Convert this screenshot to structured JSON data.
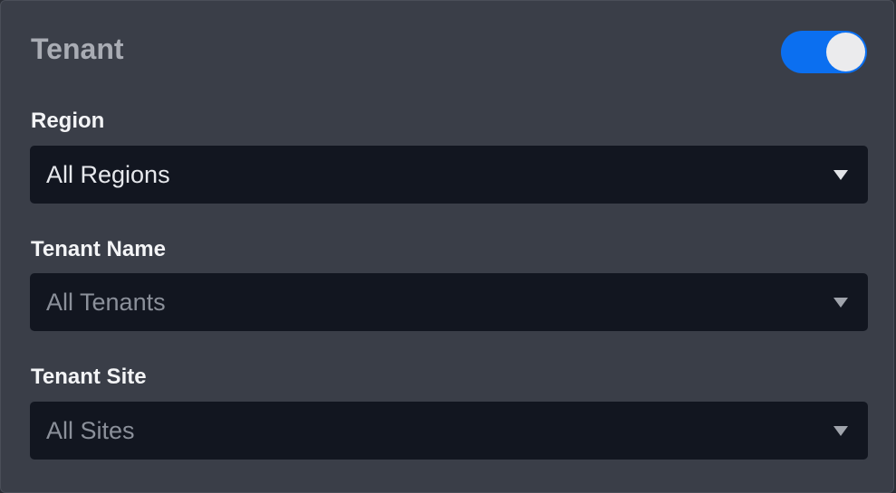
{
  "header": {
    "title": "Tenant",
    "toggle_on": true,
    "toggle_color": "#0b6ff0"
  },
  "fields": [
    {
      "label": "Region",
      "value": "All Regions"
    },
    {
      "label": "Tenant Name",
      "placeholder": "All Tenants"
    },
    {
      "label": "Tenant Site",
      "placeholder": "All Sites"
    }
  ]
}
